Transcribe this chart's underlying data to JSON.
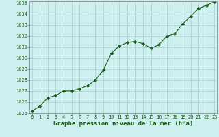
{
  "x": [
    0,
    1,
    2,
    3,
    4,
    5,
    6,
    7,
    8,
    9,
    10,
    11,
    12,
    13,
    14,
    15,
    16,
    17,
    18,
    19,
    20,
    21,
    22,
    23
  ],
  "y": [
    1025.2,
    1025.6,
    1026.4,
    1026.6,
    1027.0,
    1027.0,
    1027.2,
    1027.5,
    1028.0,
    1028.9,
    1030.4,
    1031.1,
    1031.4,
    1031.5,
    1031.3,
    1030.9,
    1031.2,
    1032.0,
    1032.2,
    1033.1,
    1033.8,
    1034.5,
    1034.8,
    1035.1
  ],
  "line_color": "#1a5c1a",
  "marker": "D",
  "marker_size": 2.2,
  "bg_color": "#cff0f0",
  "grid_color": "#b0c8c8",
  "ylim": [
    1025,
    1035
  ],
  "yticks": [
    1025,
    1026,
    1027,
    1028,
    1029,
    1030,
    1031,
    1032,
    1033,
    1034,
    1035
  ],
  "xlim": [
    -0.3,
    23.3
  ],
  "xticks": [
    0,
    1,
    2,
    3,
    4,
    5,
    6,
    7,
    8,
    9,
    10,
    11,
    12,
    13,
    14,
    15,
    16,
    17,
    18,
    19,
    20,
    21,
    22,
    23
  ],
  "xlabel": "Graphe pression niveau de la mer (hPa)",
  "xlabel_color": "#1a5c1a",
  "tick_color": "#1a5c1a",
  "axis_color": "#888888",
  "tick_fontsize": 5.0,
  "xlabel_fontsize": 6.5,
  "linewidth": 0.8
}
